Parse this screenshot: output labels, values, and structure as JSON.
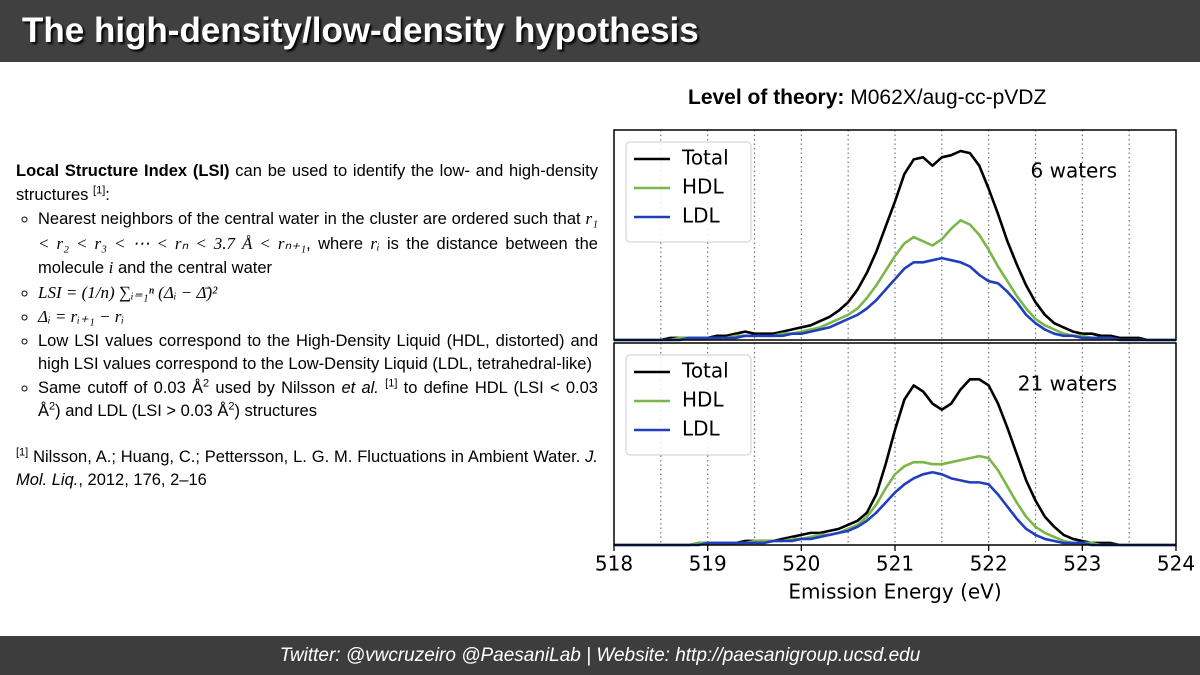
{
  "header": {
    "title": "The high-density/low-density hypothesis"
  },
  "level_of_theory": {
    "label": "Level of theory:",
    "value": "M062X/aug-cc-pVDZ"
  },
  "text": {
    "intro": [
      "Local Structure Index (LSI)",
      " can be used to identify the low- and high-density structures ",
      "[1]",
      ":"
    ],
    "bullets": [
      [
        "Nearest neighbors of the central water in the cluster are ordered such that ",
        "r₁ < r₂ < r₃ < ⋯ < rₙ < 3.7 Å < rₙ₊₁",
        ", where ",
        "rᵢ",
        " is the distance between the molecule ",
        "i",
        " and the central water"
      ],
      [
        "LSI = (1/n) ∑ᵢ₌₁ⁿ (Δᵢ − Δ̄)²"
      ],
      [
        "Δᵢ = rᵢ₊₁ − rᵢ"
      ],
      [
        "Low LSI values correspond to the High-Density Liquid (HDL, distorted) and high LSI values correspond to the Low-Density Liquid (LDL, tetrahedral-like)"
      ],
      [
        "Same cutoff of 0.03 Å",
        "2",
        " used by Nilsson ",
        "et al.",
        " ",
        "[1]",
        " to define HDL (LSI < 0.03 Å",
        "2",
        ") and LDL (LSI > 0.03 Å",
        "2",
        ") structures"
      ]
    ],
    "reference": [
      "[1]",
      " Nilsson, A.; Huang, C.; Pettersson, L. G. M. Fluctuations in Ambient Water. ",
      "J. Mol. Liq.",
      ", 2012, 176, 2–16"
    ]
  },
  "footer": "Twitter: @vwcruzeiro @PaesaniLab | Website: http://paesanigroup.ucsd.edu",
  "chart_data": [
    {
      "type": "line",
      "annotation": "6 waters",
      "legend": "upper left",
      "xlim": [
        518,
        524
      ],
      "ylim": [
        0,
        1
      ],
      "vlines": [
        518.5,
        519,
        519.5,
        520,
        520.5,
        521,
        521.5,
        522,
        522.5,
        523,
        523.5
      ],
      "x": [
        518,
        518.1,
        518.2,
        518.3,
        518.4,
        518.5,
        518.6,
        518.7,
        518.8,
        518.9,
        519,
        519.1,
        519.2,
        519.3,
        519.4,
        519.5,
        519.6,
        519.7,
        519.8,
        519.9,
        520,
        520.1,
        520.2,
        520.3,
        520.4,
        520.5,
        520.6,
        520.7,
        520.8,
        520.9,
        521,
        521.1,
        521.2,
        521.3,
        521.4,
        521.5,
        521.6,
        521.7,
        521.8,
        521.9,
        522,
        522.1,
        522.2,
        522.3,
        522.4,
        522.5,
        522.6,
        522.7,
        522.8,
        522.9,
        523,
        523.1,
        523.2,
        523.3,
        523.4,
        523.5,
        523.6,
        523.7,
        523.8,
        523.9,
        524
      ],
      "series": [
        {
          "name": "Total",
          "color": "#000000",
          "values": [
            0,
            0,
            0,
            0,
            0,
            0,
            0.01,
            0.01,
            0.01,
            0.01,
            0.01,
            0.02,
            0.02,
            0.03,
            0.04,
            0.03,
            0.03,
            0.03,
            0.04,
            0.05,
            0.06,
            0.07,
            0.09,
            0.11,
            0.14,
            0.18,
            0.24,
            0.32,
            0.42,
            0.54,
            0.66,
            0.79,
            0.86,
            0.87,
            0.83,
            0.87,
            0.88,
            0.9,
            0.89,
            0.83,
            0.72,
            0.6,
            0.47,
            0.36,
            0.26,
            0.18,
            0.12,
            0.08,
            0.06,
            0.04,
            0.03,
            0.03,
            0.02,
            0.02,
            0.01,
            0.01,
            0.01,
            0,
            0,
            0,
            0
          ]
        },
        {
          "name": "HDL",
          "color": "#7ab648",
          "values": [
            0,
            0,
            0,
            0,
            0,
            0,
            0,
            0.01,
            0.01,
            0.01,
            0.01,
            0.01,
            0.01,
            0.02,
            0.02,
            0.02,
            0.02,
            0.02,
            0.03,
            0.03,
            0.04,
            0.05,
            0.06,
            0.08,
            0.1,
            0.12,
            0.15,
            0.2,
            0.26,
            0.33,
            0.4,
            0.46,
            0.49,
            0.47,
            0.45,
            0.48,
            0.53,
            0.57,
            0.55,
            0.5,
            0.43,
            0.35,
            0.28,
            0.21,
            0.15,
            0.1,
            0.07,
            0.05,
            0.03,
            0.02,
            0.02,
            0.01,
            0.01,
            0.01,
            0,
            0,
            0,
            0,
            0,
            0,
            0
          ]
        },
        {
          "name": "LDL",
          "color": "#1f3fbf",
          "values": [
            0,
            0,
            0,
            0,
            0,
            0,
            0,
            0,
            0.01,
            0.01,
            0.01,
            0.01,
            0.01,
            0.01,
            0.02,
            0.02,
            0.02,
            0.02,
            0.02,
            0.03,
            0.03,
            0.04,
            0.05,
            0.06,
            0.08,
            0.1,
            0.12,
            0.15,
            0.19,
            0.24,
            0.29,
            0.34,
            0.37,
            0.37,
            0.38,
            0.39,
            0.38,
            0.37,
            0.35,
            0.31,
            0.28,
            0.27,
            0.23,
            0.18,
            0.12,
            0.08,
            0.05,
            0.03,
            0.02,
            0.02,
            0.01,
            0.01,
            0.01,
            0.01,
            0,
            0,
            0,
            0,
            0,
            0,
            0
          ]
        }
      ]
    },
    {
      "type": "line",
      "annotation": "21 waters",
      "legend": "upper left",
      "xlim": [
        518,
        524
      ],
      "ylim": [
        0,
        1
      ],
      "xticks": [
        518,
        519,
        520,
        521,
        522,
        523,
        524
      ],
      "xlabel": "Emission Energy (eV)",
      "vlines": [
        518.5,
        519,
        519.5,
        520,
        520.5,
        521,
        521.5,
        522,
        522.5,
        523,
        523.5
      ],
      "x": [
        518,
        518.1,
        518.2,
        518.3,
        518.4,
        518.5,
        518.6,
        518.7,
        518.8,
        518.9,
        519,
        519.1,
        519.2,
        519.3,
        519.4,
        519.5,
        519.6,
        519.7,
        519.8,
        519.9,
        520,
        520.1,
        520.2,
        520.3,
        520.4,
        520.5,
        520.6,
        520.7,
        520.8,
        520.9,
        521,
        521.1,
        521.2,
        521.3,
        521.4,
        521.5,
        521.6,
        521.7,
        521.8,
        521.9,
        522,
        522.1,
        522.2,
        522.3,
        522.4,
        522.5,
        522.6,
        522.7,
        522.8,
        522.9,
        523,
        523.1,
        523.2,
        523.3,
        523.4,
        523.5,
        523.6,
        523.7,
        523.8,
        523.9,
        524
      ],
      "series": [
        {
          "name": "Total",
          "color": "#000000",
          "values": [
            0,
            0,
            0,
            0,
            0,
            0,
            0,
            0,
            0,
            0.01,
            0.01,
            0.01,
            0.01,
            0.01,
            0.02,
            0.02,
            0.02,
            0.02,
            0.03,
            0.04,
            0.05,
            0.06,
            0.06,
            0.07,
            0.08,
            0.1,
            0.12,
            0.16,
            0.25,
            0.4,
            0.57,
            0.72,
            0.79,
            0.76,
            0.7,
            0.67,
            0.7,
            0.77,
            0.82,
            0.82,
            0.79,
            0.7,
            0.58,
            0.45,
            0.32,
            0.22,
            0.14,
            0.09,
            0.05,
            0.03,
            0.02,
            0.01,
            0.01,
            0.01,
            0,
            0,
            0,
            0,
            0,
            0,
            0
          ]
        },
        {
          "name": "HDL",
          "color": "#7ab648",
          "values": [
            0,
            0,
            0,
            0,
            0,
            0,
            0,
            0,
            0,
            0.01,
            0.01,
            0.01,
            0.01,
            0.01,
            0.01,
            0.02,
            0.02,
            0.02,
            0.02,
            0.03,
            0.03,
            0.04,
            0.05,
            0.05,
            0.06,
            0.08,
            0.1,
            0.14,
            0.2,
            0.28,
            0.35,
            0.39,
            0.41,
            0.41,
            0.4,
            0.4,
            0.41,
            0.42,
            0.43,
            0.44,
            0.43,
            0.37,
            0.29,
            0.21,
            0.14,
            0.09,
            0.06,
            0.04,
            0.02,
            0.01,
            0.01,
            0.01,
            0,
            0,
            0,
            0,
            0,
            0,
            0,
            0,
            0
          ]
        },
        {
          "name": "LDL",
          "color": "#1f3fbf",
          "values": [
            0,
            0,
            0,
            0,
            0,
            0,
            0,
            0,
            0,
            0,
            0.01,
            0.01,
            0.01,
            0.01,
            0.01,
            0.01,
            0.01,
            0.02,
            0.02,
            0.02,
            0.03,
            0.03,
            0.04,
            0.05,
            0.06,
            0.07,
            0.09,
            0.12,
            0.16,
            0.21,
            0.26,
            0.3,
            0.33,
            0.35,
            0.36,
            0.35,
            0.33,
            0.32,
            0.31,
            0.31,
            0.3,
            0.25,
            0.19,
            0.13,
            0.08,
            0.05,
            0.03,
            0.02,
            0.01,
            0.01,
            0.01,
            0,
            0,
            0,
            0,
            0,
            0,
            0,
            0,
            0,
            0
          ]
        }
      ]
    }
  ]
}
